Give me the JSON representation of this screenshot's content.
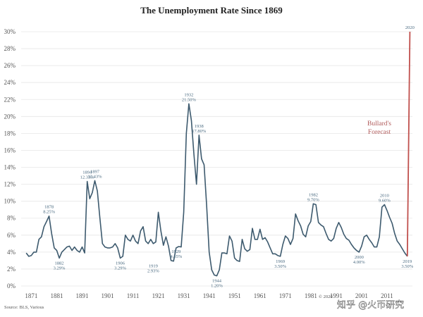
{
  "chart_data": {
    "type": "line",
    "title": "The Unemployment Rate Since 1869",
    "xlabel": "",
    "ylabel": "",
    "ylim": [
      0,
      30
    ],
    "xlim": [
      1867,
      2021
    ],
    "grid": true,
    "y_ticks": [
      "0%",
      "2%",
      "4%",
      "6%",
      "8%",
      "10%",
      "12%",
      "14%",
      "16%",
      "18%",
      "20%",
      "22%",
      "24%",
      "26%",
      "28%",
      "30%"
    ],
    "x_ticks": [
      1871,
      1881,
      1891,
      1901,
      1911,
      1921,
      1931,
      1941,
      1951,
      1961,
      1971,
      1981,
      1991,
      2001,
      2011
    ],
    "x_tick_labels": [
      "1871",
      "1881",
      "1891",
      "1901",
      "1911",
      "1921",
      "1931",
      "1941",
      "1951",
      "1961",
      "1971",
      "1981",
      "1991",
      "2001",
      "2011"
    ],
    "series": [
      {
        "color": "#3d5a6e",
        "x": [
          1869,
          1870,
          1871,
          1872,
          1873,
          1874,
          1875,
          1876,
          1877,
          1878,
          1879,
          1880,
          1881,
          1882,
          1883,
          1884,
          1885,
          1886,
          1887,
          1888,
          1889,
          1890,
          1891,
          1892,
          1893,
          1894,
          1895,
          1896,
          1897,
          1898,
          1899,
          1900,
          1901,
          1902,
          1903,
          1904,
          1905,
          1906,
          1907,
          1908,
          1909,
          1910,
          1911,
          1912,
          1913,
          1914,
          1915,
          1916,
          1917,
          1918,
          1919,
          1920,
          1921,
          1922,
          1923,
          1924,
          1925,
          1926,
          1927,
          1928,
          1929,
          1930,
          1931,
          1932,
          1933,
          1934,
          1935,
          1936,
          1937,
          1938,
          1939,
          1940,
          1941,
          1942,
          1943,
          1944,
          1945,
          1946,
          1947,
          1948,
          1949,
          1950,
          1951,
          1952,
          1953,
          1954,
          1955,
          1956,
          1957,
          1958,
          1959,
          1960,
          1961,
          1962,
          1963,
          1964,
          1965,
          1966,
          1967,
          1968,
          1969,
          1970,
          1971,
          1972,
          1973,
          1974,
          1975,
          1976,
          1977,
          1978,
          1979,
          1980,
          1981,
          1982,
          1983,
          1984,
          1985,
          1986,
          1987,
          1988,
          1989,
          1990,
          1991,
          1992,
          1993,
          1994,
          1995,
          1996,
          1997,
          1998,
          1999,
          2000,
          2001,
          2002,
          2003,
          2004,
          2005,
          2006,
          2007,
          2008,
          2009,
          2010,
          2011,
          2012,
          2013,
          2014,
          2015,
          2016,
          2017,
          2018,
          2019
        ],
        "values": [
          3.9,
          3.5,
          3.6,
          4.0,
          4.0,
          5.5,
          5.8,
          7.0,
          7.6,
          8.25,
          6.2,
          4.5,
          4.2,
          3.29,
          4.0,
          4.3,
          4.6,
          4.7,
          4.2,
          4.6,
          4.2,
          4.0,
          4.6,
          3.9,
          12.33,
          10.3,
          11.0,
          12.43,
          11.2,
          8.0,
          5.0,
          4.6,
          4.5,
          4.5,
          4.6,
          5.0,
          4.5,
          3.29,
          3.5,
          6.0,
          5.5,
          5.3,
          6.0,
          5.3,
          5.0,
          6.5,
          7.0,
          5.3,
          5.0,
          5.5,
          5.0,
          5.2,
          8.7,
          6.5,
          4.8,
          5.8,
          4.7,
          3.0,
          2.93,
          4.5,
          4.65,
          4.6,
          8.7,
          18.0,
          21.5,
          19.5,
          15.5,
          12.0,
          17.8,
          15.0,
          14.3,
          9.5,
          4.0,
          1.9,
          1.3,
          1.2,
          1.9,
          3.9,
          3.9,
          3.8,
          5.9,
          5.3,
          3.3,
          3.0,
          2.9,
          5.5,
          4.4,
          4.1,
          4.3,
          6.8,
          5.5,
          5.5,
          6.7,
          5.5,
          5.7,
          5.2,
          4.5,
          3.8,
          3.8,
          3.6,
          3.5,
          4.9,
          5.9,
          5.6,
          4.9,
          5.6,
          8.5,
          7.7,
          7.1,
          6.1,
          5.8,
          7.1,
          7.6,
          9.7,
          9.6,
          7.5,
          7.2,
          7.0,
          6.2,
          5.5,
          5.3,
          5.6,
          6.8,
          7.5,
          6.9,
          6.1,
          5.6,
          5.4,
          4.9,
          4.5,
          4.2,
          4.0,
          4.7,
          5.8,
          6.0,
          5.5,
          5.1,
          4.6,
          4.6,
          5.8,
          9.3,
          9.6,
          8.9,
          8.1,
          7.4,
          6.2,
          5.3,
          4.9,
          4.4,
          3.9,
          3.5
        ]
      },
      {
        "color": "#c0504d",
        "x": [
          2019,
          2020
        ],
        "values": [
          3.5,
          30
        ]
      }
    ],
    "annotations": [
      {
        "year": "1878",
        "value_text": "8.25%",
        "x": 1878,
        "y": 8.25,
        "pos": "above"
      },
      {
        "year": "1882",
        "value_text": "3.29%",
        "x": 1882,
        "y": 3.29,
        "pos": "below"
      },
      {
        "year": "1894",
        "value_text": "12.33%",
        "x": 1893,
        "y": 12.33,
        "pos": "above"
      },
      {
        "year": "1897",
        "value_text": "12.43%",
        "x": 1896,
        "y": 12.43,
        "pos": "above"
      },
      {
        "year": "1906",
        "value_text": "3.29%",
        "x": 1906,
        "y": 3.29,
        "pos": "below"
      },
      {
        "year": "1919",
        "value_text": "2.93%",
        "x": 1919,
        "y": 2.93,
        "pos": "below"
      },
      {
        "year": "1929",
        "value_text": "4.65%",
        "x": 1928,
        "y": 4.65,
        "pos": "below"
      },
      {
        "year": "1932",
        "value_text": "21.50%",
        "x": 1933,
        "y": 21.5,
        "pos": "above"
      },
      {
        "year": "1938",
        "value_text": "17.80%",
        "x": 1937,
        "y": 17.8,
        "pos": "above"
      },
      {
        "year": "1944",
        "value_text": "1.20%",
        "x": 1944,
        "y": 1.2,
        "pos": "below"
      },
      {
        "year": "1969",
        "value_text": "3.50%",
        "x": 1969,
        "y": 3.5,
        "pos": "below"
      },
      {
        "year": "1982",
        "value_text": "9.70%",
        "x": 1982,
        "y": 9.7,
        "pos": "above"
      },
      {
        "year": "2000",
        "value_text": "4.00%",
        "x": 2000,
        "y": 4.0,
        "pos": "below"
      },
      {
        "year": "2010",
        "value_text": "9.60%",
        "x": 2010,
        "y": 9.6,
        "pos": "above"
      },
      {
        "year": "2019",
        "value_text": "3.50%",
        "x": 2019,
        "y": 3.5,
        "pos": "below"
      },
      {
        "year": "2020",
        "value_text": "",
        "x": 2020,
        "y": 30,
        "pos": "above"
      }
    ],
    "forecast_label": [
      "Bullard's",
      "Forecast"
    ],
    "source": "Source: BLS, Various",
    "copyright": "© 2020",
    "watermark": "知乎 @火币研究"
  }
}
